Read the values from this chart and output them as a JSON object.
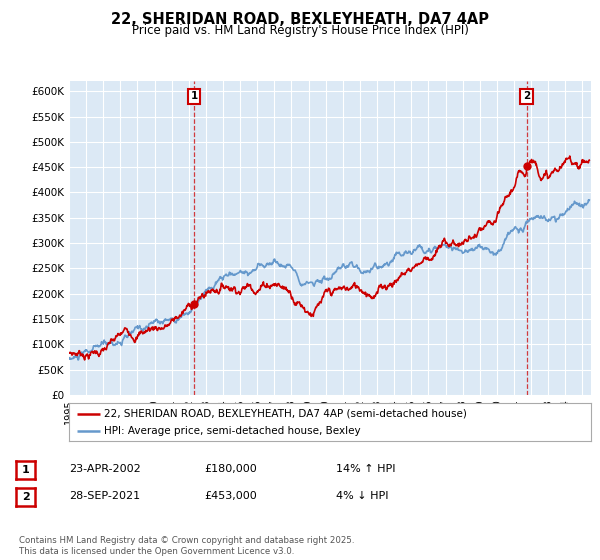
{
  "title": "22, SHERIDAN ROAD, BEXLEYHEATH, DA7 4AP",
  "subtitle": "Price paid vs. HM Land Registry's House Price Index (HPI)",
  "ylabel_ticks": [
    "£0",
    "£50K",
    "£100K",
    "£150K",
    "£200K",
    "£250K",
    "£300K",
    "£350K",
    "£400K",
    "£450K",
    "£500K",
    "£550K",
    "£600K"
  ],
  "ytick_values": [
    0,
    50000,
    100000,
    150000,
    200000,
    250000,
    300000,
    350000,
    400000,
    450000,
    500000,
    550000,
    600000
  ],
  "ylim": [
    0,
    620000
  ],
  "xlim_start": 1995.2,
  "xlim_end": 2025.5,
  "sale1_x": 2002.31,
  "sale1_y": 180000,
  "sale2_x": 2021.74,
  "sale2_y": 453000,
  "line_color_red": "#cc0000",
  "line_color_blue": "#6699cc",
  "vline_color": "#cc0000",
  "dot_color": "#cc0000",
  "legend_label1": "22, SHERIDAN ROAD, BEXLEYHEATH, DA7 4AP (semi-detached house)",
  "legend_label2": "HPI: Average price, semi-detached house, Bexley",
  "table_row1": [
    "1",
    "23-APR-2002",
    "£180,000",
    "14% ↑ HPI"
  ],
  "table_row2": [
    "2",
    "28-SEP-2021",
    "£453,000",
    "4% ↓ HPI"
  ],
  "footer": "Contains HM Land Registry data © Crown copyright and database right 2025.\nThis data is licensed under the Open Government Licence v3.0.",
  "bg_color": "#ffffff",
  "plot_bg_color": "#dce9f5",
  "grid_color": "#ffffff"
}
